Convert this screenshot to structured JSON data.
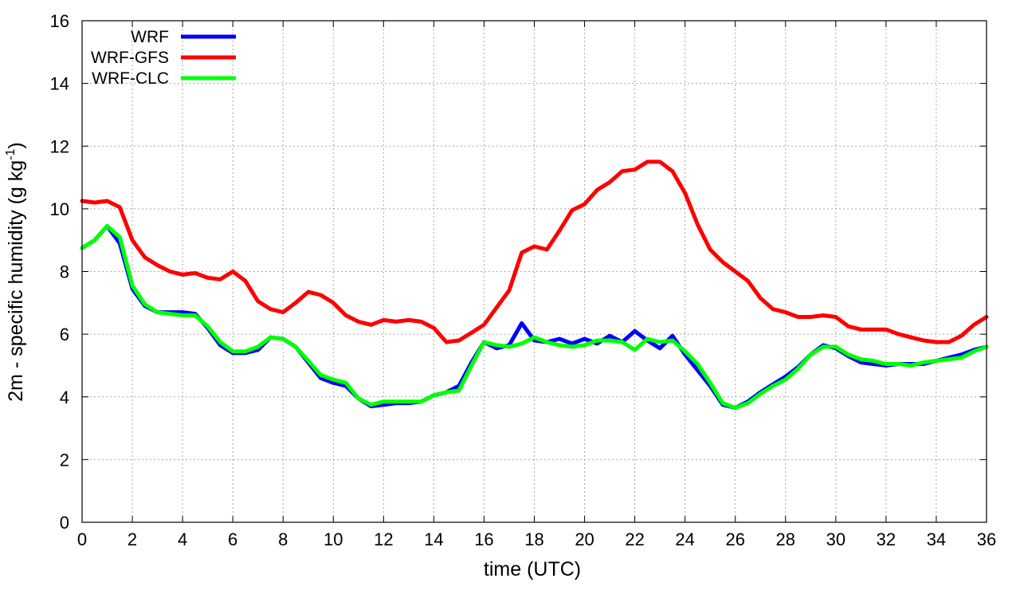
{
  "chart_data": {
    "type": "line",
    "title": "",
    "xlabel": "time (UTC)",
    "ylabel_parts": {
      "main": "2m - specific humidity (g kg",
      "sup": "-1",
      "close": ")"
    },
    "xlim": [
      0,
      36
    ],
    "ylim": [
      0,
      16
    ],
    "xticks": [
      "0",
      "2",
      "4",
      "6",
      "8",
      "10",
      "12",
      "14",
      "16",
      "18",
      "20",
      "22",
      "24",
      "26",
      "28",
      "30",
      "32",
      "34",
      "36"
    ],
    "yticks": [
      "0",
      "2",
      "4",
      "6",
      "8",
      "10",
      "12",
      "14",
      "16"
    ],
    "grid": true,
    "legend_position": "top-left",
    "x": [
      0,
      0.5,
      1,
      1.5,
      2,
      2.5,
      3,
      3.5,
      4,
      4.5,
      5,
      5.5,
      6,
      6.5,
      7,
      7.5,
      8,
      8.5,
      9,
      9.5,
      10,
      10.5,
      11,
      11.5,
      12,
      12.5,
      13,
      13.5,
      14,
      14.5,
      15,
      15.5,
      16,
      16.5,
      17,
      17.5,
      18,
      18.5,
      19,
      19.5,
      20,
      20.5,
      21,
      21.5,
      22,
      22.5,
      23,
      23.5,
      24,
      24.5,
      25,
      25.5,
      26,
      26.5,
      27,
      27.5,
      28,
      28.5,
      29,
      29.5,
      30,
      30.5,
      31,
      31.5,
      32,
      32.5,
      33,
      33.5,
      34,
      34.5,
      35,
      35.5,
      36
    ],
    "series": [
      {
        "name": "WRF",
        "color": "#0000ff",
        "values": [
          8.75,
          9.0,
          9.45,
          8.9,
          7.45,
          6.9,
          6.7,
          6.7,
          6.7,
          6.65,
          6.2,
          5.65,
          5.4,
          5.4,
          5.5,
          5.9,
          5.85,
          5.6,
          5.1,
          4.6,
          4.45,
          4.35,
          3.95,
          3.7,
          3.75,
          3.8,
          3.8,
          3.85,
          4.05,
          4.15,
          4.35,
          5.1,
          5.75,
          5.55,
          5.65,
          6.35,
          5.8,
          5.75,
          5.85,
          5.7,
          5.85,
          5.7,
          5.95,
          5.75,
          6.1,
          5.8,
          5.55,
          5.95,
          5.35,
          4.85,
          4.35,
          3.75,
          3.65,
          3.85,
          4.15,
          4.4,
          4.65,
          4.95,
          5.35,
          5.65,
          5.55,
          5.3,
          5.1,
          5.05,
          5.0,
          5.05,
          5.05,
          5.05,
          5.15,
          5.25,
          5.35,
          5.5,
          5.6
        ]
      },
      {
        "name": "WRF-GFS",
        "color": "#ff0000",
        "values": [
          10.25,
          10.2,
          10.25,
          10.05,
          9.0,
          8.45,
          8.2,
          8.0,
          7.9,
          7.95,
          7.8,
          7.75,
          8.0,
          7.7,
          7.05,
          6.8,
          6.7,
          7.0,
          7.35,
          7.25,
          7.0,
          6.6,
          6.4,
          6.3,
          6.45,
          6.4,
          6.45,
          6.4,
          6.2,
          5.75,
          5.8,
          6.05,
          6.3,
          6.85,
          7.4,
          8.6,
          8.8,
          8.7,
          9.3,
          9.95,
          10.15,
          10.6,
          10.85,
          11.2,
          11.25,
          11.5,
          11.5,
          11.2,
          10.5,
          9.5,
          8.7,
          8.3,
          8.0,
          7.7,
          7.15,
          6.8,
          6.7,
          6.55,
          6.55,
          6.6,
          6.55,
          6.25,
          6.15,
          6.15,
          6.15,
          6.0,
          5.9,
          5.8,
          5.75,
          5.75,
          5.95,
          6.3,
          6.55
        ]
      },
      {
        "name": "WRF-CLC",
        "color": "#00ff00",
        "values": [
          8.75,
          9.0,
          9.45,
          9.1,
          7.55,
          6.95,
          6.7,
          6.65,
          6.6,
          6.6,
          6.25,
          5.75,
          5.45,
          5.45,
          5.6,
          5.9,
          5.85,
          5.6,
          5.15,
          4.7,
          4.55,
          4.45,
          3.95,
          3.75,
          3.85,
          3.85,
          3.85,
          3.85,
          4.05,
          4.15,
          4.2,
          5.0,
          5.75,
          5.65,
          5.6,
          5.7,
          5.9,
          5.75,
          5.65,
          5.6,
          5.65,
          5.8,
          5.8,
          5.75,
          5.5,
          5.85,
          5.75,
          5.8,
          5.45,
          5.05,
          4.45,
          3.8,
          3.65,
          3.8,
          4.1,
          4.35,
          4.55,
          4.9,
          5.35,
          5.6,
          5.6,
          5.35,
          5.2,
          5.15,
          5.05,
          5.05,
          5.0,
          5.1,
          5.15,
          5.2,
          5.25,
          5.45,
          5.6
        ]
      }
    ]
  }
}
